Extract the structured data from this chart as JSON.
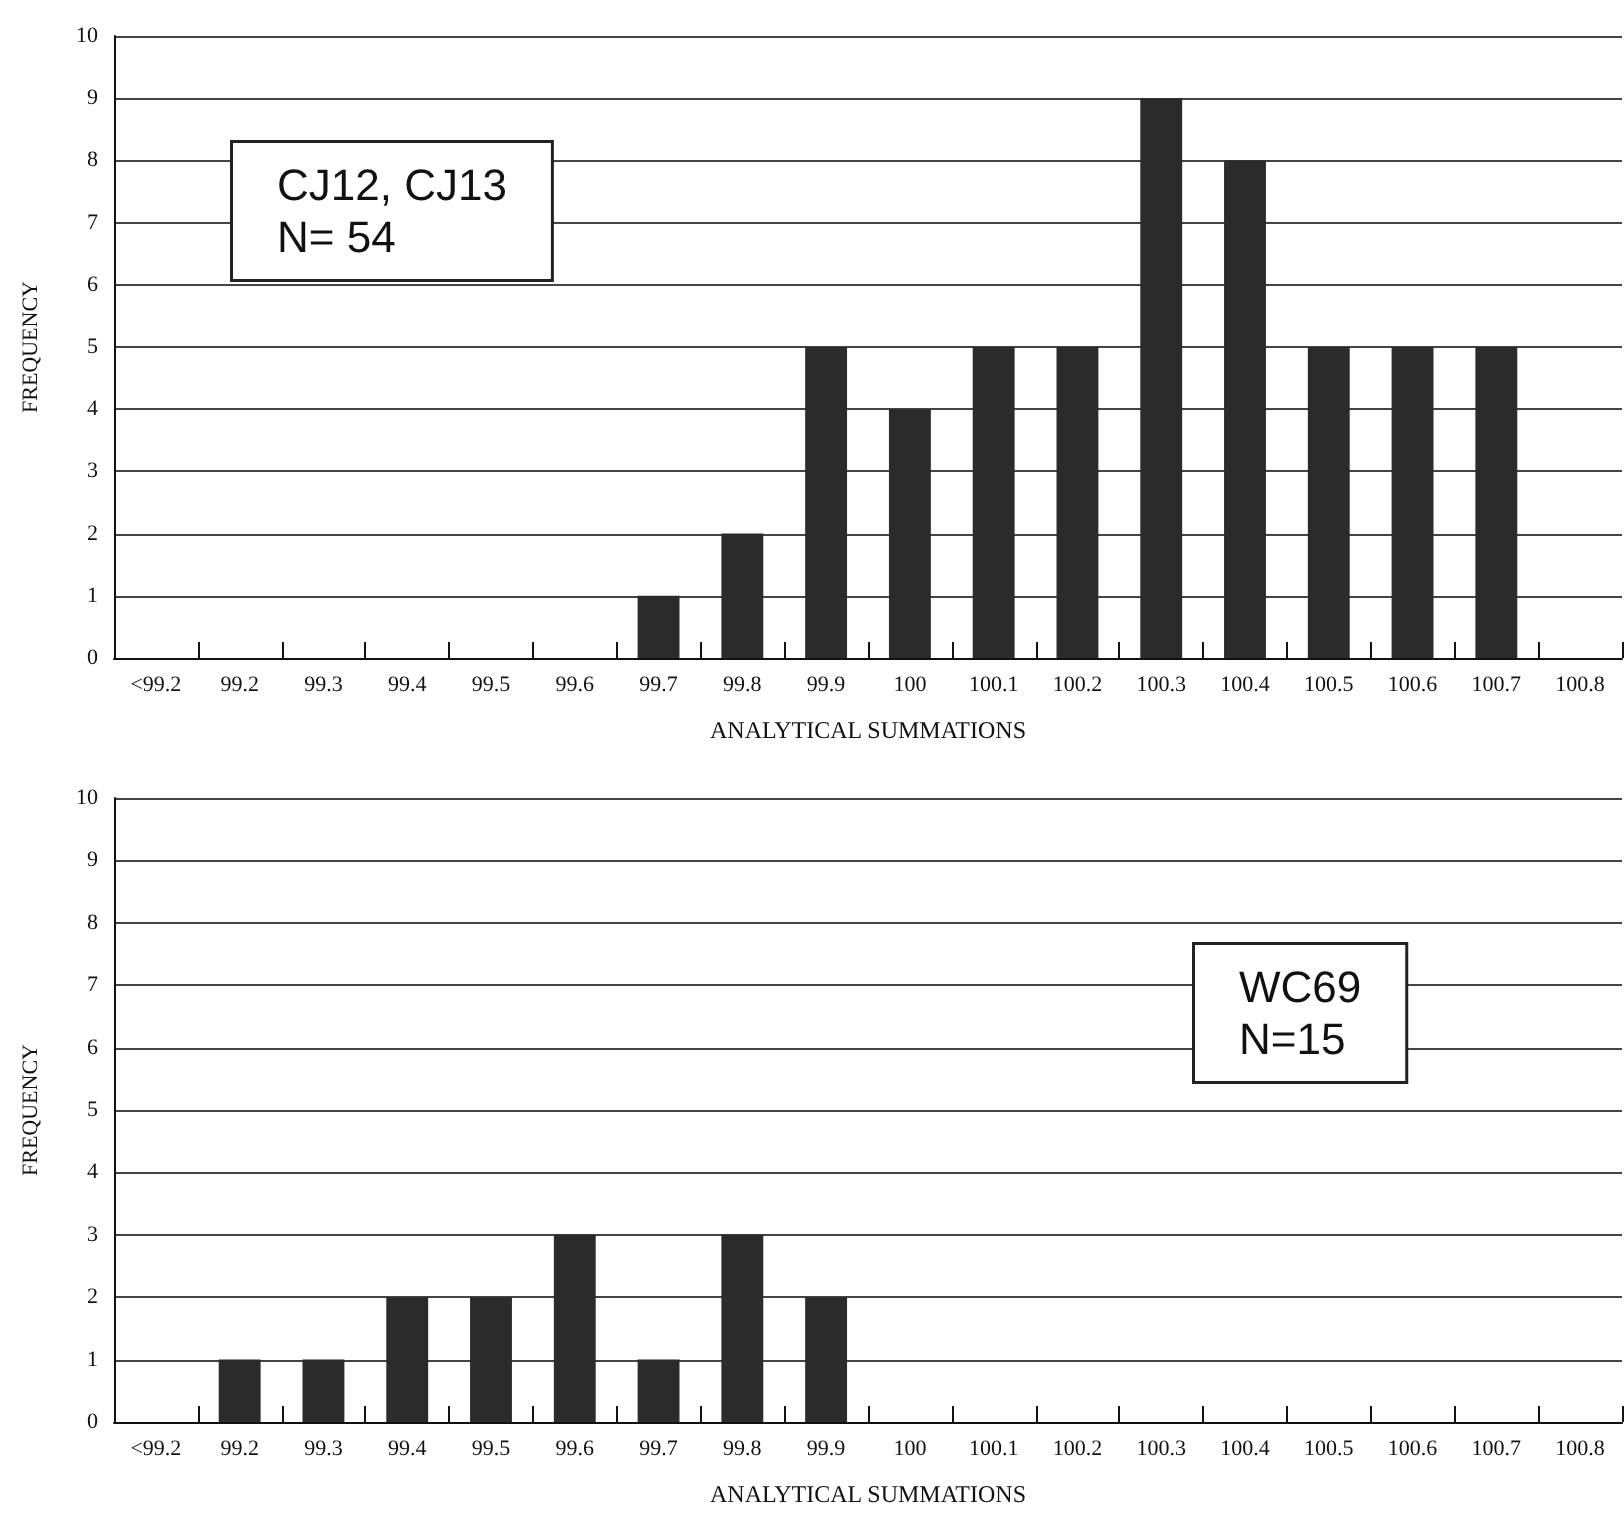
{
  "chart_data": [
    {
      "type": "bar",
      "xlabel": "ANALYTICAL SUMMATIONS",
      "ylabel": "FREQUENCY",
      "categories": [
        "<99.2",
        "99.2",
        "99.3",
        "99.4",
        "99.5",
        "99.6",
        "99.7",
        "99.8",
        "99.9",
        "100",
        "100.1",
        "100.2",
        "100.3",
        "100.4",
        "100.5",
        "100.6",
        "100.7",
        "100.8"
      ],
      "values": [
        0,
        0,
        0,
        0,
        0,
        0,
        1,
        2,
        5,
        4,
        5,
        5,
        9,
        8,
        5,
        5,
        5,
        0
      ],
      "color": "#2b2b2b",
      "ylim": [
        0,
        10
      ],
      "yticks": [
        0,
        1,
        2,
        3,
        4,
        5,
        6,
        7,
        8,
        9,
        10
      ],
      "grid": "y",
      "annotations": [
        "CJ12, CJ13\nN= 54"
      ]
    },
    {
      "type": "bar",
      "xlabel": "ANALYTICAL SUMMATIONS",
      "ylabel": "FREQUENCY",
      "categories": [
        "<99.2",
        "99.2",
        "99.3",
        "99.4",
        "99.5",
        "99.6",
        "99.7",
        "99.8",
        "99.9",
        "100",
        "100.1",
        "100.2",
        "100.3",
        "100.4",
        "100.5",
        "100.6",
        "100.7",
        "100.8"
      ],
      "values": [
        0,
        1,
        1,
        2,
        2,
        3,
        1,
        3,
        2,
        0,
        0,
        0,
        0,
        0,
        0,
        0,
        0,
        0
      ],
      "color": "#2b2b2b",
      "ylim": [
        0,
        10
      ],
      "yticks": [
        0,
        1,
        2,
        3,
        4,
        5,
        6,
        7,
        8,
        9,
        10
      ],
      "grid": "y",
      "annotations": [
        "WC69\nN=15"
      ]
    }
  ]
}
